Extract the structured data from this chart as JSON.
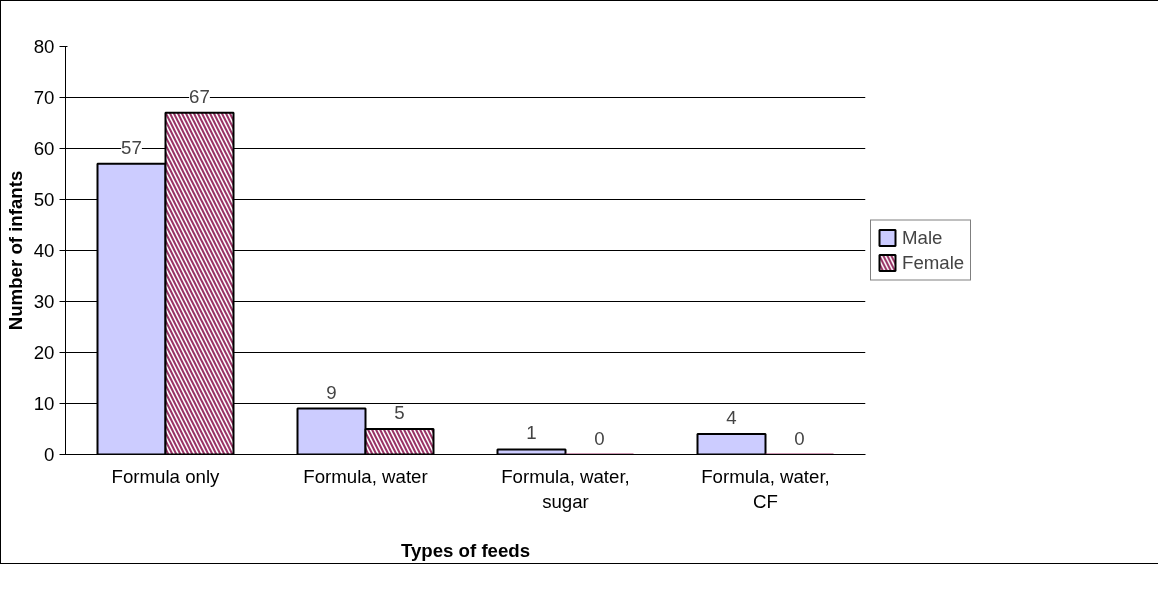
{
  "chart_data": {
    "type": "bar",
    "xlabel": "Types of feeds",
    "ylabel": "Number of infants",
    "categories": [
      "Formula only",
      "Formula, water",
      "Formula, water, sugar",
      "Formula, water, CF"
    ],
    "series": [
      {
        "name": "Male",
        "color": "#ccccff",
        "values": [
          57,
          9,
          1,
          4
        ]
      },
      {
        "name": "Female",
        "color": "#993366",
        "values": [
          67,
          5,
          0,
          0
        ]
      }
    ],
    "ylim": [
      0,
      80
    ],
    "yticks": [
      0,
      10,
      20,
      30,
      40,
      50,
      60,
      70,
      80
    ],
    "grid": "y",
    "legend": "right",
    "data_labels": true
  }
}
